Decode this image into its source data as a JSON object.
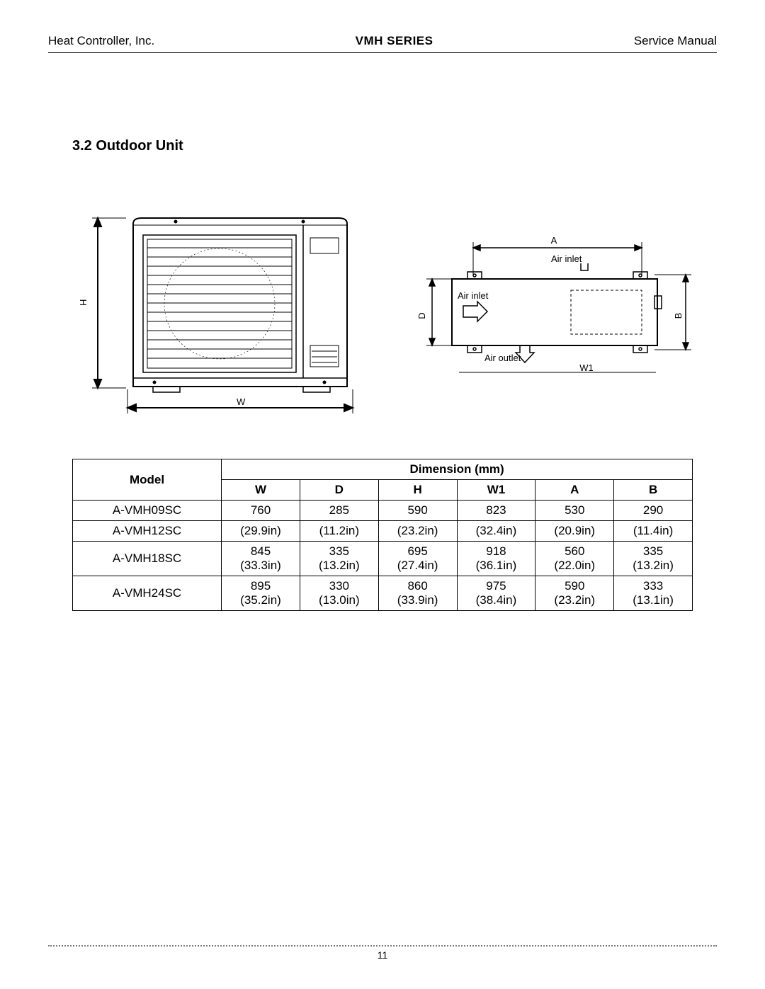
{
  "header": {
    "left": "Heat Controller, Inc.",
    "center": "VMH SERIES",
    "right": "Service Manual"
  },
  "section": {
    "title": "3.2 Outdoor Unit"
  },
  "diagram_front": {
    "labels": {
      "H": "H",
      "W": "W"
    },
    "stroke": "#000000",
    "fill": "#ffffff"
  },
  "diagram_top": {
    "labels": {
      "A": "A",
      "B": "B",
      "D": "D",
      "W1": "W1",
      "air_inlet_top": "Air inlet",
      "air_inlet_left": "Air inlet",
      "air_outlet": "Air outlet"
    },
    "stroke": "#000000"
  },
  "table": {
    "header_model": "Model",
    "header_dim": "Dimension (mm)",
    "columns": [
      "W",
      "D",
      "H",
      "W1",
      "A",
      "B"
    ],
    "rows": [
      {
        "model": "A-VMH09SC",
        "mm": [
          "760",
          "285",
          "590",
          "823",
          "530",
          "290"
        ],
        "in": null
      },
      {
        "model": "A-VMH12SC",
        "mm": null,
        "in": [
          "(29.9in)",
          "(11.2in)",
          "(23.2in)",
          "(32.4in)",
          "(20.9in)",
          "(11.4in)"
        ]
      },
      {
        "model": "A-VMH18SC",
        "mm": [
          "845",
          "335",
          "695",
          "918",
          "560",
          "335"
        ],
        "in": [
          "(33.3in)",
          "(13.2in)",
          "(27.4in)",
          "(36.1in)",
          "(22.0in)",
          "(13.2in)"
        ]
      },
      {
        "model": "A-VMH24SC",
        "mm": [
          "895",
          "330",
          "860",
          "975",
          "590",
          "333"
        ],
        "in": [
          "(35.2in)",
          "(13.0in)",
          "(33.9in)",
          "(38.4in)",
          "(23.2in)",
          "(13.1in)"
        ]
      }
    ]
  },
  "footer": {
    "page_number": "11"
  }
}
